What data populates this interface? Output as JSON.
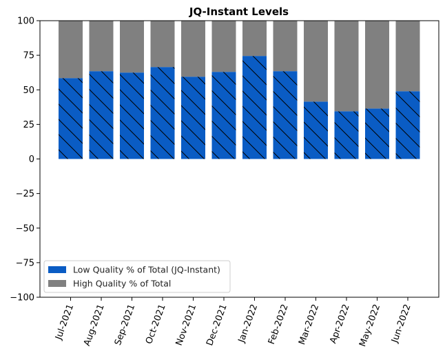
{
  "chart_data": {
    "type": "bar",
    "stacked": true,
    "title": "JQ-Instant Levels",
    "xlabel": "",
    "ylabel": "",
    "ylim": [
      -100,
      100
    ],
    "yticks": [
      100,
      75,
      50,
      25,
      0,
      -25,
      -50,
      -75,
      -100
    ],
    "categories": [
      "Jul-2021",
      "Aug-2021",
      "Sep-2021",
      "Oct-2021",
      "Nov-2021",
      "Dec-2021",
      "Jan-2022",
      "Feb-2022",
      "Mar-2022",
      "Apr-2022",
      "May-2022",
      "Jun-2022"
    ],
    "series": [
      {
        "name": "Low Quality % of Total (JQ-Instant)",
        "color": "#0a5cc4",
        "hatch": "diagonal",
        "values": [
          58.5,
          63.5,
          62.5,
          66.5,
          59.5,
          63,
          74.5,
          63.5,
          41.5,
          34.5,
          36.5,
          49
        ]
      },
      {
        "name": "High Quality % of Total",
        "color": "#808080",
        "hatch": "none",
        "values": [
          41.5,
          36.5,
          37.5,
          33.5,
          40.5,
          37,
          25.5,
          36.5,
          58.5,
          65.5,
          63.5,
          51
        ]
      }
    ],
    "legend": "lower-left",
    "grid": false
  }
}
